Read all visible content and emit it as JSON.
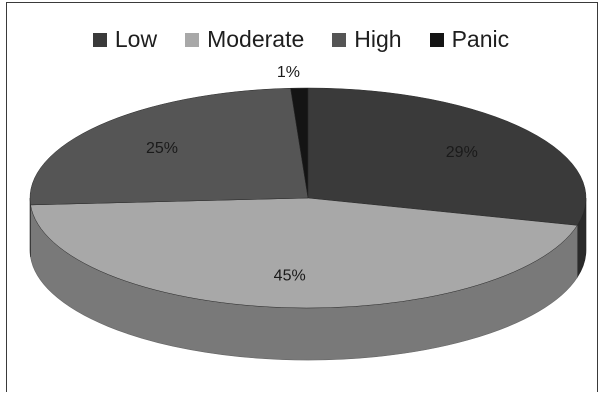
{
  "chart_data": {
    "type": "pie",
    "title": "",
    "categories": [
      "Low",
      "Moderate",
      "High",
      "Panic"
    ],
    "values": [
      29,
      45,
      25,
      1
    ],
    "labels": [
      "29%",
      "45%",
      "25%",
      "1%"
    ],
    "colors": {
      "Low": "#3a3a3a",
      "Moderate": "#a8a8a8",
      "High": "#555555",
      "Panic": "#141414"
    },
    "legend_position": "top",
    "three_d": true
  },
  "legend": {
    "items": [
      {
        "label": "Low",
        "color": "#3a3a3a"
      },
      {
        "label": "Moderate",
        "color": "#a8a8a8"
      },
      {
        "label": "High",
        "color": "#555555"
      },
      {
        "label": "Panic",
        "color": "#141414"
      }
    ]
  }
}
